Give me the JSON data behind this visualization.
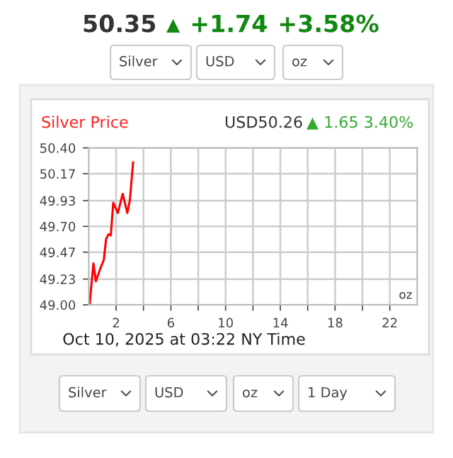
{
  "chart_data": {
    "type": "line",
    "title": "Silver Price",
    "subtitle": "USD50.26 ▲ 1.65 3.40%",
    "x": [
      0.06,
      0.34,
      0.52,
      0.83,
      1.1,
      1.27,
      1.45,
      1.61,
      1.79,
      2.13,
      2.48,
      2.82,
      3.0,
      3.24
    ],
    "series": [
      {
        "color": "#ff0000",
        "values": [
          49.0,
          49.37,
          49.21,
          49.32,
          49.4,
          49.59,
          49.63,
          49.62,
          49.91,
          49.82,
          49.99,
          49.82,
          49.93,
          50.27
        ]
      }
    ],
    "xlim": [
      0,
      24
    ],
    "xticks": [
      2,
      {
        "value": 4,
        "label": null
      },
      6,
      {
        "value": 8,
        "label": null
      },
      10,
      {
        "value": 12,
        "label": null
      },
      14,
      {
        "value": 16,
        "label": null
      },
      18,
      {
        "value": 20,
        "label": null
      },
      22
    ],
    "ylim": [
      49.0,
      50.4
    ],
    "yticks": [
      {
        "value": 49.0,
        "label": "49.00"
      },
      {
        "value": 49.23,
        "label": "49.23"
      },
      {
        "value": 49.47,
        "label": "49.47"
      },
      {
        "value": 49.7,
        "label": "49.70"
      },
      {
        "value": 49.93,
        "label": "49.93"
      },
      {
        "value": 50.17,
        "label": "50.17"
      },
      {
        "value": 50.4,
        "label": "50.40"
      }
    ],
    "grid": true,
    "legend": false,
    "marker": "none",
    "line_style": "solid",
    "annotations": [
      "50.35",
      "▲",
      "+1.74",
      "+3.58%",
      "Silver",
      "USD",
      "oz",
      "oz",
      "Oct 10, 2025 at 03:22 NY Time",
      "Silver",
      "USD",
      "oz",
      "1 Day"
    ]
  }
}
